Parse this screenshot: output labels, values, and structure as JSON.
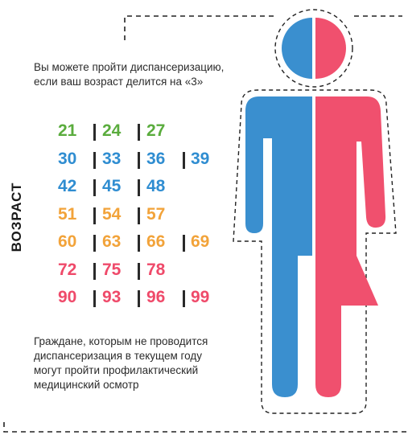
{
  "intro": {
    "line1": "Вы можете пройти диспансеризацию,",
    "line2": "если ваш возраст делится на «3»"
  },
  "age_label": "ВОЗРАСТ",
  "age_rows": [
    {
      "color": "#5aac3d",
      "values": [
        "21",
        "24",
        "27"
      ]
    },
    {
      "color": "#2f8dd1",
      "values": [
        "30",
        "33",
        "36",
        "39"
      ]
    },
    {
      "color": "#2f8dd1",
      "values": [
        "42",
        "45",
        "48"
      ]
    },
    {
      "color": "#f2a33a",
      "values": [
        "51",
        "54",
        "57"
      ]
    },
    {
      "color": "#f2a33a",
      "values": [
        "60",
        "63",
        "66",
        "69"
      ]
    },
    {
      "color": "#ef4a6a",
      "values": [
        "72",
        "75",
        "78"
      ]
    },
    {
      "color": "#ef4a6a",
      "values": [
        "90",
        "93",
        "96",
        "99"
      ]
    }
  ],
  "outro": {
    "line1": "Граждане, которым не проводится",
    "line2": "диспансеризация в текущем году",
    "line3": "могут пройти профилактический",
    "line4": "медицинский осмотр"
  },
  "colors": {
    "male": "#3a8fcf",
    "female": "#f0506e",
    "frame": "#222222"
  },
  "figure": {
    "left_icon": "man-half-icon",
    "right_icon": "woman-half-icon"
  }
}
